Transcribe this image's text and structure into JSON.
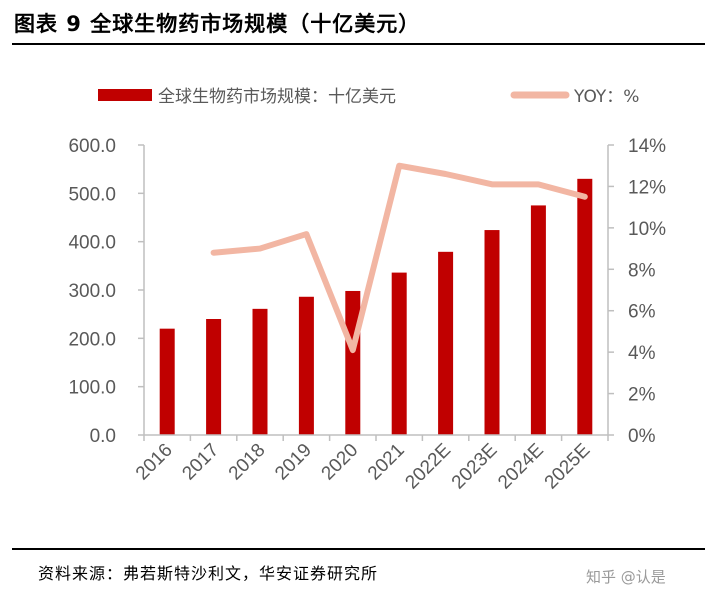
{
  "header": {
    "title": "图表 9 全球生物药市场规模（十亿美元）"
  },
  "footer": {
    "source": "资料来源：弗若斯特沙利文，华安证券研究所",
    "watermark": "知乎 @认是"
  },
  "colors": {
    "bar": "#c00000",
    "line": "#f2b6a3",
    "axis": "#bfbfbf",
    "tick_text": "#595959"
  },
  "chart_data": {
    "type": "bar",
    "categories": [
      "2016",
      "2017",
      "2018",
      "2019",
      "2020",
      "2021",
      "2022E",
      "2023E",
      "2024E",
      "2025E"
    ],
    "series": [
      {
        "name": "全球生物药市场规模：十亿美元",
        "type": "bar",
        "axis": "left",
        "values": [
          220,
          240,
          261,
          286,
          298,
          336,
          379,
          424,
          475,
          530
        ]
      },
      {
        "name": "YOY：%",
        "type": "line",
        "axis": "right",
        "values": [
          null,
          8.8,
          9.0,
          9.7,
          4.1,
          13.0,
          12.6,
          12.1,
          12.1,
          11.5
        ]
      }
    ],
    "y_left": {
      "min": 0,
      "max": 600,
      "ticks": [
        "0.0",
        "100.0",
        "200.0",
        "300.0",
        "400.0",
        "500.0",
        "600.0"
      ]
    },
    "y_right": {
      "min": 0,
      "max": 14,
      "ticks": [
        "0%",
        "2%",
        "4%",
        "6%",
        "8%",
        "10%",
        "12%",
        "14%"
      ]
    },
    "legend": "top",
    "grid": false
  }
}
